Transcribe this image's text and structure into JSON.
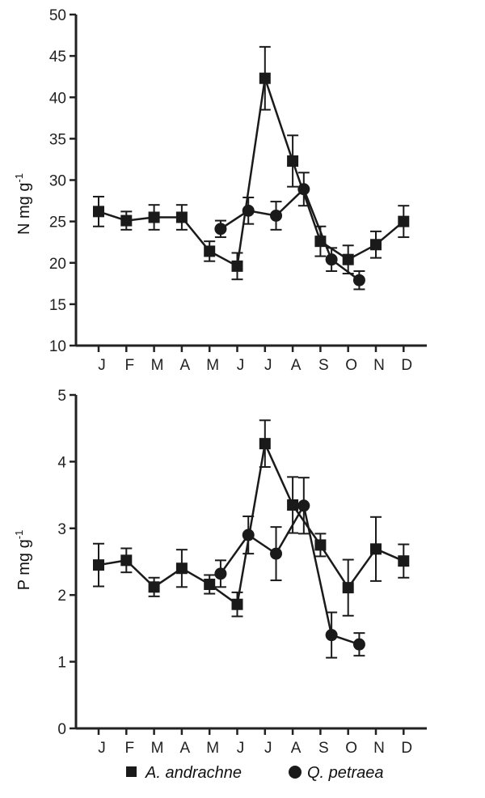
{
  "colors": {
    "series": "#1a1a1a",
    "axis": "#222222",
    "background": "#ffffff"
  },
  "legend": {
    "placement": "bottom",
    "items": [
      {
        "label": "A. andrachne",
        "marker": "square"
      },
      {
        "label": "Q. petraea",
        "marker": "circle"
      }
    ]
  },
  "chart_data": [
    {
      "type": "line",
      "ylabel_main": "N mg g",
      "ylabel_sup": "-1",
      "xlabel": "",
      "title": "",
      "ylim": [
        10,
        50
      ],
      "yticks": [
        10,
        15,
        20,
        25,
        30,
        35,
        40,
        45,
        50
      ],
      "grid": false,
      "categories": [
        "J",
        "F",
        "M",
        "A",
        "M",
        "J",
        "J",
        "A",
        "S",
        "O",
        "N",
        "D"
      ],
      "series": [
        {
          "name": "A. andrachne",
          "marker": "square",
          "x": [
            1,
            2,
            3,
            4,
            5,
            6,
            7,
            8,
            9,
            10,
            11,
            12
          ],
          "values": [
            26.2,
            25.1,
            25.5,
            25.5,
            21.4,
            19.6,
            42.3,
            32.3,
            22.6,
            20.4,
            22.2,
            25.0
          ],
          "errors": [
            1.8,
            1.1,
            1.5,
            1.5,
            1.2,
            1.6,
            3.8,
            3.1,
            1.8,
            1.7,
            1.6,
            1.9
          ]
        },
        {
          "name": "Q. petraea",
          "marker": "circle",
          "x": [
            5.4,
            6.4,
            7.4,
            8.4,
            9.4,
            10.4
          ],
          "values": [
            24.1,
            26.3,
            25.7,
            28.9,
            20.4,
            17.9
          ],
          "errors": [
            1.0,
            1.6,
            1.7,
            2.0,
            1.4,
            1.1
          ]
        }
      ]
    },
    {
      "type": "line",
      "ylabel_main": "P mg g",
      "ylabel_sup": "-1",
      "xlabel": "",
      "title": "",
      "ylim": [
        0,
        5
      ],
      "yticks": [
        0,
        1,
        2,
        3,
        4,
        5
      ],
      "grid": false,
      "categories": [
        "J",
        "F",
        "M",
        "A",
        "M",
        "J",
        "J",
        "A",
        "S",
        "O",
        "N",
        "D"
      ],
      "series": [
        {
          "name": "A. andrachne",
          "marker": "square",
          "x": [
            1,
            2,
            3,
            4,
            5,
            6,
            7,
            8,
            9,
            10,
            11,
            12
          ],
          "values": [
            2.45,
            2.52,
            2.12,
            2.4,
            2.16,
            1.86,
            4.27,
            3.35,
            2.75,
            2.11,
            2.69,
            2.51
          ],
          "errors": [
            0.32,
            0.18,
            0.14,
            0.28,
            0.14,
            0.18,
            0.35,
            0.42,
            0.17,
            0.42,
            0.48,
            0.25
          ]
        },
        {
          "name": "Q. petraea",
          "marker": "circle",
          "x": [
            5.4,
            6.4,
            7.4,
            8.4,
            9.4,
            10.4
          ],
          "values": [
            2.32,
            2.9,
            2.62,
            3.34,
            1.4,
            1.26
          ],
          "errors": [
            0.2,
            0.28,
            0.4,
            0.42,
            0.34,
            0.17
          ]
        }
      ]
    }
  ]
}
